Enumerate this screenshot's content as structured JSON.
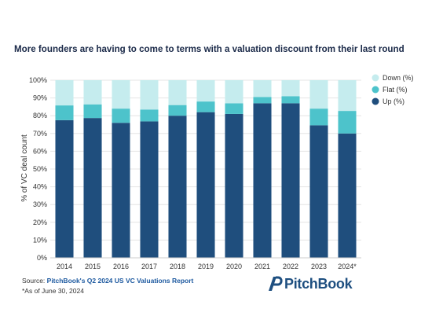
{
  "title": "More founders are having to come to terms with a valuation discount from their last round",
  "source": {
    "prefix": "Source: ",
    "link_text": "PitchBook's Q2 2024 US VC Valuations Report"
  },
  "footnote": "*As of June 30, 2024",
  "logo_text": "PitchBook",
  "colors": {
    "down": "#c5ecee",
    "flat": "#4dc3cb",
    "up": "#1f4e7d",
    "gridline": "#e4e4e4"
  },
  "chart_data": {
    "type": "bar",
    "stacked": true,
    "categories": [
      "2014",
      "2015",
      "2016",
      "2017",
      "2018",
      "2019",
      "2020",
      "2021",
      "2022",
      "2023",
      "2024*"
    ],
    "series": [
      {
        "name": "Up (%)",
        "values": [
          77.5,
          78.7,
          76.0,
          76.8,
          80.0,
          82.0,
          81.0,
          87.0,
          87.0,
          74.6,
          70.0
        ]
      },
      {
        "name": "Flat (%)",
        "values": [
          8.3,
          7.7,
          8.0,
          6.7,
          6.0,
          6.0,
          6.0,
          3.5,
          4.0,
          9.4,
          12.7
        ]
      },
      {
        "name": "Down (%)",
        "values": [
          14.2,
          13.6,
          16.0,
          16.5,
          14.0,
          12.0,
          13.0,
          9.5,
          9.0,
          16.0,
          17.3
        ]
      }
    ],
    "legend": [
      "Down (%)",
      "Flat (%)",
      "Up (%)"
    ],
    "legend_position": "top-right",
    "ylabel": "% of VC deal count",
    "xlabel": "",
    "ylim": [
      0,
      100
    ],
    "yticks": [
      "0%",
      "10%",
      "20%",
      "30%",
      "40%",
      "50%",
      "60%",
      "70%",
      "80%",
      "90%",
      "100%"
    ],
    "grid": true
  }
}
